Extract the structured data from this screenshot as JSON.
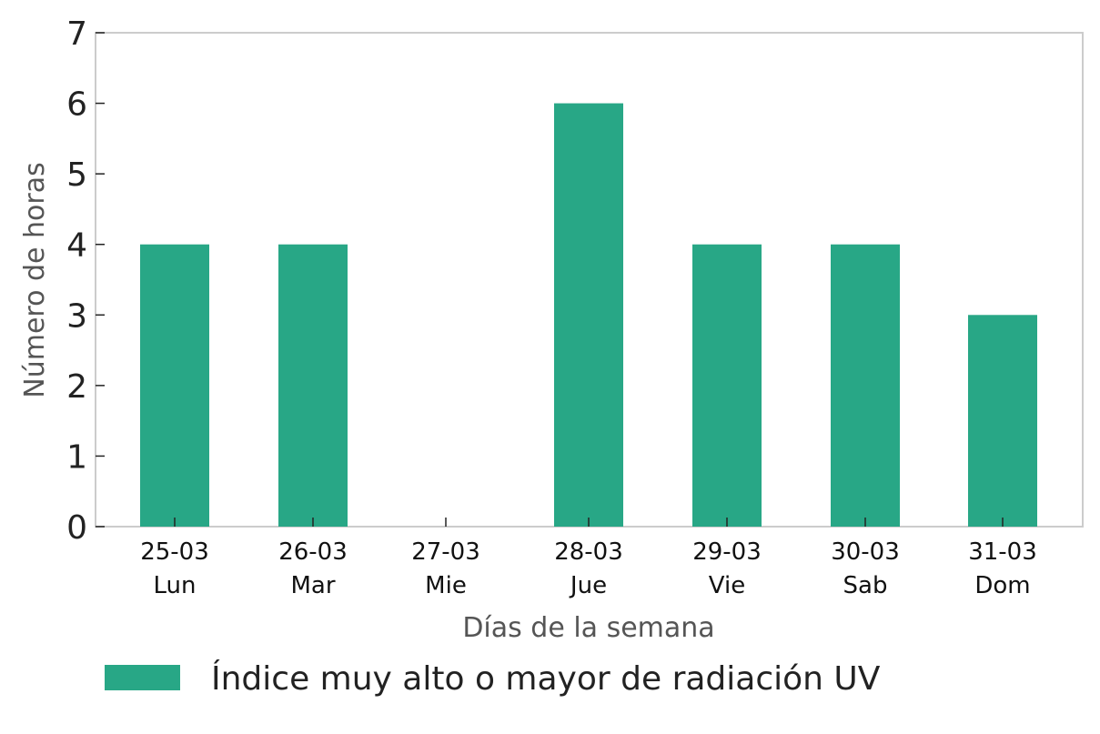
{
  "chart_data": {
    "type": "bar",
    "categories": [
      [
        "25-03",
        "Lun"
      ],
      [
        "26-03",
        "Mar"
      ],
      [
        "27-03",
        "Mie"
      ],
      [
        "28-03",
        "Jue"
      ],
      [
        "29-03",
        "Vie"
      ],
      [
        "30-03",
        "Sab"
      ],
      [
        "31-03",
        "Dom"
      ]
    ],
    "series": [
      {
        "name": "Índice muy alto o mayor de radiación UV",
        "values": [
          4,
          4,
          0,
          6,
          4,
          4,
          3
        ],
        "color": "#28a786"
      }
    ],
    "xlabel": "Días de la semana",
    "ylabel": "Número de horas",
    "ylim": [
      0,
      7
    ],
    "yticks": [
      0,
      1,
      2,
      3,
      4,
      5,
      6,
      7
    ],
    "grid": false,
    "legend_position": "bottom"
  }
}
